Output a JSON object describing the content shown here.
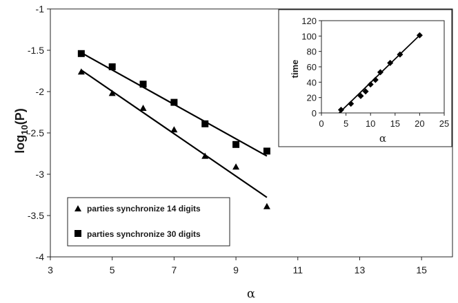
{
  "chart_data": [
    {
      "type": "scatter",
      "xlabel": "α",
      "ylabel_base": "log",
      "ylabel_sub": "10",
      "ylabel_rest": "(P)",
      "xlim": [
        3,
        16
      ],
      "ylim": [
        -4,
        -1
      ],
      "xticks": [
        "3",
        "5",
        "7",
        "9",
        "11",
        "13",
        "15"
      ],
      "yticks": [
        "-1",
        "-1.5",
        "-2",
        "-2.5",
        "-3",
        "-3.5",
        "-4"
      ],
      "series": [
        {
          "name": "parties synchronize 14 digits",
          "marker": "triangle",
          "x": [
            4,
            5,
            6,
            7,
            8,
            9,
            10
          ],
          "y": [
            -1.76,
            -2.02,
            -2.2,
            -2.46,
            -2.78,
            -2.91,
            -3.39
          ],
          "fit": [
            [
              4,
              -1.74
            ],
            [
              10,
              -3.28
            ]
          ]
        },
        {
          "name": "parties synchronize 30 digits",
          "marker": "square",
          "x": [
            4,
            5,
            6,
            7,
            8,
            9,
            10
          ],
          "y": [
            -1.54,
            -1.7,
            -1.91,
            -2.13,
            -2.39,
            -2.64,
            -2.72
          ],
          "fit": [
            [
              4,
              -1.53
            ],
            [
              10,
              -2.78
            ]
          ]
        }
      ],
      "legend_position": "bottom-left"
    },
    {
      "type": "scatter",
      "xlabel": "α",
      "ylabel": "time",
      "xlim": [
        0,
        25
      ],
      "ylim": [
        0,
        120
      ],
      "xticks": [
        "0",
        "5",
        "10",
        "15",
        "20",
        "25"
      ],
      "yticks": [
        "0",
        "20",
        "40",
        "60",
        "80",
        "100",
        "120"
      ],
      "series": [
        {
          "marker": "diamond",
          "x": [
            4,
            6,
            8,
            9,
            10,
            11,
            12,
            14,
            16,
            20
          ],
          "y": [
            4,
            12,
            22,
            28,
            37,
            43,
            53,
            65,
            76,
            101
          ],
          "fit": [
            [
              3.6,
              0
            ],
            [
              20,
              101
            ]
          ]
        }
      ],
      "legend_position": "none"
    }
  ]
}
